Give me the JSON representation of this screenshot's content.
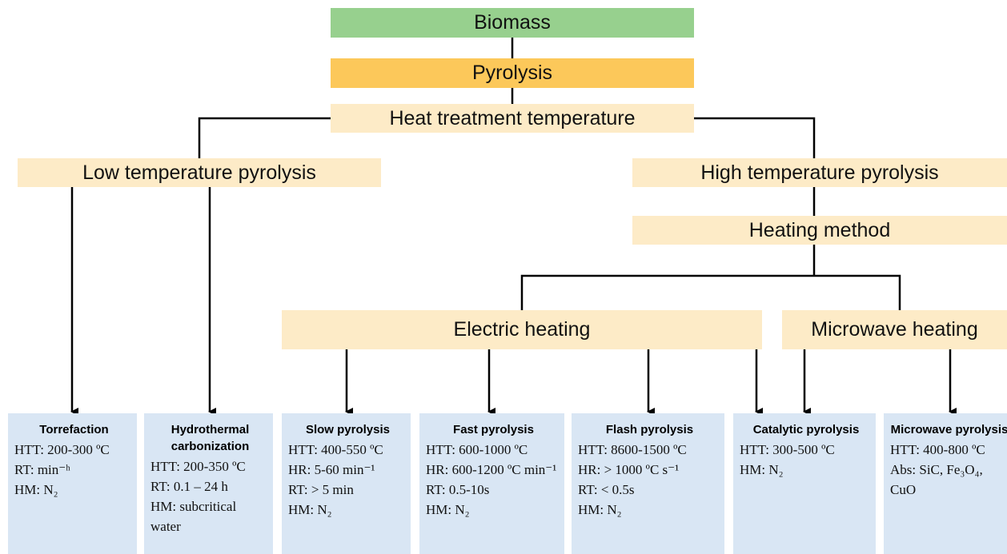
{
  "boxes": {
    "biomass": "Biomass",
    "pyrolysis": "Pyrolysis",
    "htt": "Heat treatment temperature",
    "low": "Low temperature pyrolysis",
    "high": "High temperature pyrolysis",
    "method": "Heating method",
    "electric": "Electric heating",
    "microwave": "Microwave heating"
  },
  "methods": [
    {
      "title": "Torrefaction",
      "lines": [
        "HTT: 200-300 ºC",
        "RT: min⁻ʰ",
        "HM: N₂"
      ]
    },
    {
      "title": "Hydrothermal carbonization",
      "lines": [
        "HTT: 200-350 ºC",
        "RT: 0.1 – 24 h",
        "HM: subcritical water"
      ]
    },
    {
      "title": "Slow pyrolysis",
      "lines": [
        "HTT: 400-550 ºC",
        "HR: 5-60 min⁻¹",
        "RT: > 5 min",
        "HM: N₂"
      ]
    },
    {
      "title": "Fast pyrolysis",
      "lines": [
        "HTT: 600-1000 ºC",
        "HR: 600-1200 ºC min⁻¹",
        "RT: 0.5-10s",
        "HM: N₂"
      ]
    },
    {
      "title": "Flash pyrolysis",
      "lines": [
        "HTT: 8600-1500 ºC",
        "HR: > 1000 ºC s⁻¹",
        "RT: < 0.5s",
        "HM: N₂"
      ]
    },
    {
      "title": "Catalytic pyrolysis",
      "lines": [
        "HTT: 300-500 ºC",
        "HM: N₂"
      ]
    },
    {
      "title": "Microwave pyrolysis",
      "lines": [
        "HTT: 400-800 ºC",
        "Abs: SiC, Fe₃O₄, CuO"
      ]
    }
  ]
}
